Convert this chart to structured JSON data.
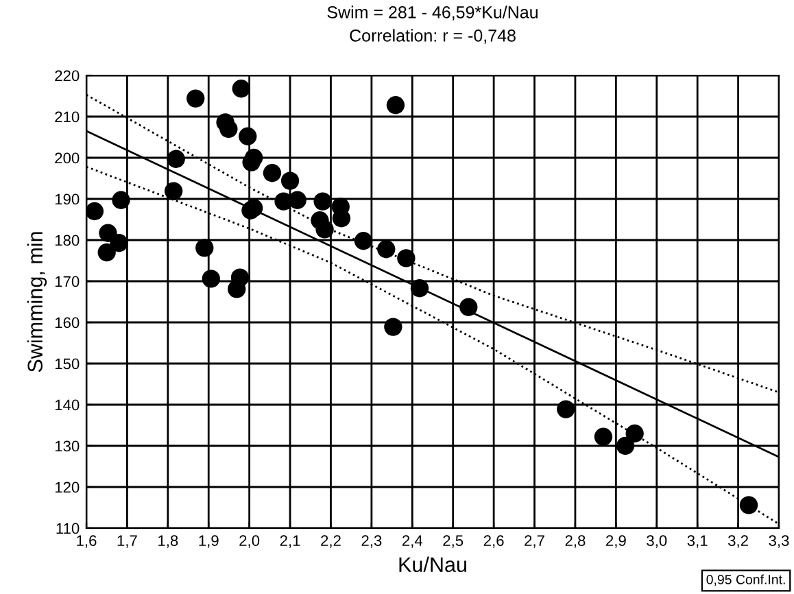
{
  "chart_data": {
    "type": "scatter",
    "title": "Swim = 281 - 46,59*Ku/Nau",
    "subtitle": "Correlation: r = -0,748",
    "xlabel": "Ku/Nau",
    "ylabel": "Swimming, min",
    "xlim": [
      1.6,
      3.3
    ],
    "xticks": [
      {
        "value": 1.6,
        "label": "1,6"
      },
      {
        "value": 1.7,
        "label": "1,7"
      },
      {
        "value": 1.8,
        "label": "1,8"
      },
      {
        "value": 1.9,
        "label": "1,9"
      },
      {
        "value": 2.0,
        "label": "2,0"
      },
      {
        "value": 2.1,
        "label": "2,1"
      },
      {
        "value": 2.2,
        "label": "2,2"
      },
      {
        "value": 2.3,
        "label": "2,3"
      },
      {
        "value": 2.4,
        "label": "2,4"
      },
      {
        "value": 2.5,
        "label": "2,5"
      },
      {
        "value": 2.6,
        "label": "2,6"
      },
      {
        "value": 2.7,
        "label": "2,7"
      },
      {
        "value": 2.8,
        "label": "2,8"
      },
      {
        "value": 2.9,
        "label": "2,9"
      },
      {
        "value": 3.0,
        "label": "3,0"
      },
      {
        "value": 3.1,
        "label": "3,1"
      },
      {
        "value": 3.2,
        "label": "3,2"
      },
      {
        "value": 3.3,
        "label": "3,3"
      }
    ],
    "ylim": [
      110,
      220
    ],
    "yticks": [
      110,
      120,
      130,
      140,
      150,
      160,
      170,
      180,
      190,
      200,
      210,
      220
    ],
    "grid": true,
    "annotations": [
      "0,95 Conf.Int."
    ],
    "series": [
      {
        "color": "#000000",
        "marker": "circle",
        "x": [
          1.62,
          1.653,
          1.65,
          1.68,
          1.685,
          1.868,
          1.82,
          1.814,
          1.89,
          1.906,
          1.969,
          1.977,
          1.98,
          1.941,
          1.949,
          1.996,
          2.011,
          2.005,
          2.056,
          2.1,
          2.084,
          2.118,
          2.18,
          2.003,
          2.011,
          2.173,
          2.185,
          2.224,
          2.226,
          2.28,
          2.336,
          2.385,
          2.418,
          2.538,
          2.353,
          2.359,
          2.777,
          2.869,
          2.923,
          2.946,
          3.226
        ],
        "values": [
          187,
          181.7,
          177,
          179.3,
          189.7,
          214.4,
          199.7,
          191.9,
          178.1,
          170.6,
          168.1,
          170.9,
          216.8,
          208.6,
          207,
          205.2,
          200,
          198.9,
          196.3,
          194.4,
          189.4,
          189.7,
          189.4,
          187.2,
          187.8,
          184.8,
          182.6,
          188.1,
          185.3,
          179.8,
          177.8,
          175.6,
          168.3,
          163.7,
          158.9,
          212.8,
          138.9,
          132.2,
          130,
          133,
          115.6
        ]
      },
      {
        "type": "line",
        "color": "#000000",
        "line_style": "solid",
        "marker": "none",
        "x": [
          1.6,
          3.3
        ],
        "values": [
          206.5,
          127.3
        ]
      },
      {
        "type": "line",
        "color": "#000000",
        "line_style": "dotted",
        "marker": "none",
        "x": [
          1.6,
          2.0,
          2.2,
          2.6,
          3.0,
          3.3
        ],
        "values": [
          215.3,
          192.8,
          182.5,
          166.5,
          153.3,
          143
        ]
      },
      {
        "type": "line",
        "color": "#000000",
        "line_style": "dotted",
        "marker": "none",
        "x": [
          1.6,
          2.0,
          2.2,
          2.6,
          3.0,
          3.3
        ],
        "values": [
          197.8,
          182.8,
          174.5,
          153.5,
          129.5,
          111
        ]
      }
    ]
  }
}
